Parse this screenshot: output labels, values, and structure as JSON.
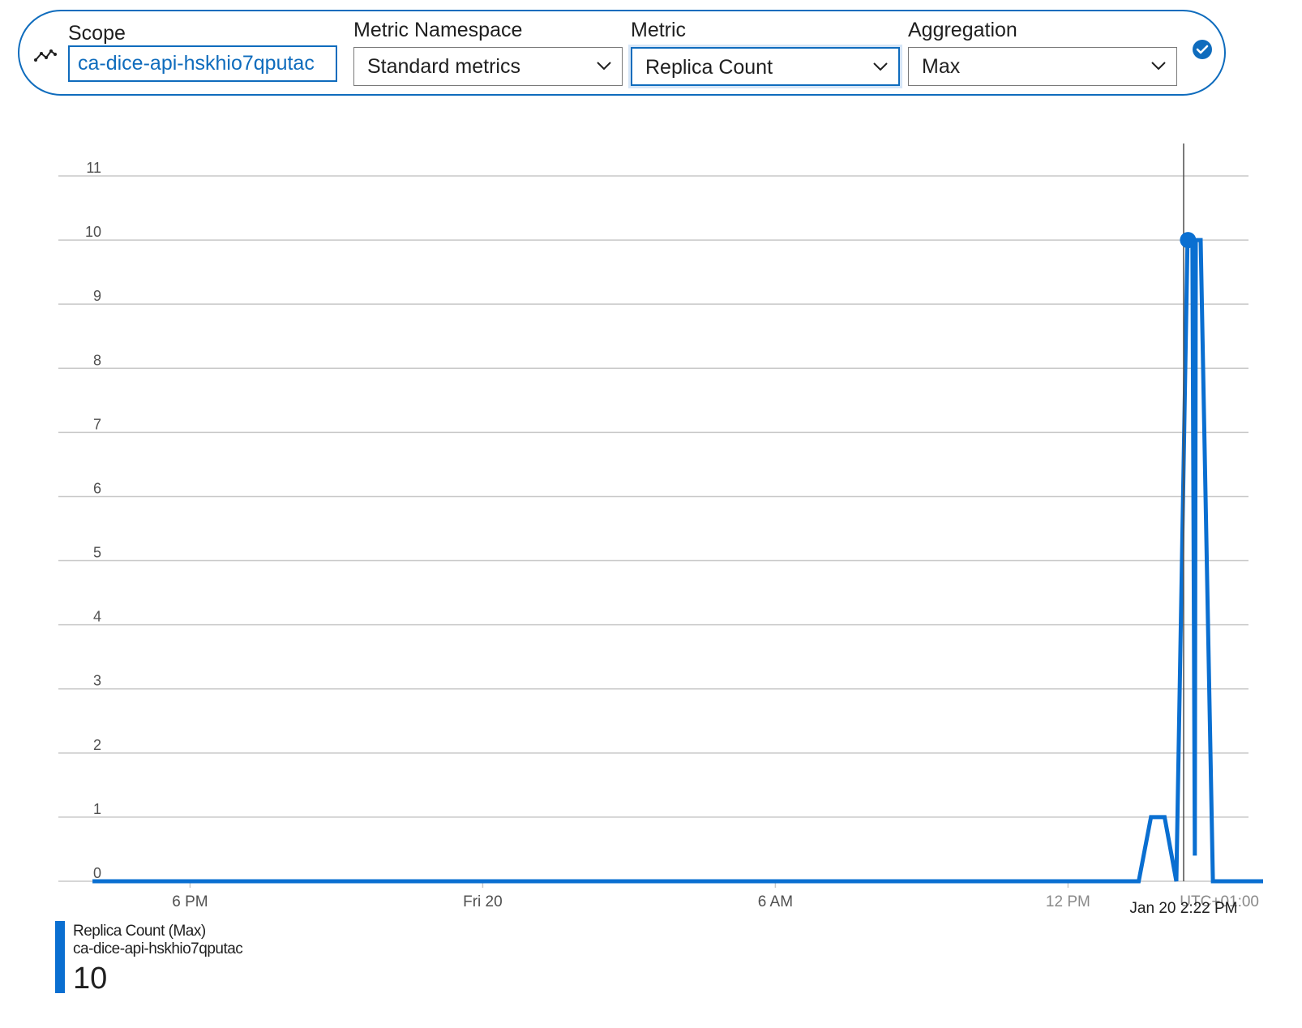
{
  "toolbar": {
    "scope_label": "Scope",
    "scope_value": "ca-dice-api-hskhio7qputac",
    "namespace_label": "Metric Namespace",
    "namespace_value": "Standard metrics",
    "metric_label": "Metric",
    "metric_value": "Replica Count",
    "aggregation_label": "Aggregation",
    "aggregation_value": "Max",
    "icons": [
      "metric-line-icon",
      "chevron-down-icon",
      "checkmark-circle-icon"
    ]
  },
  "colors": {
    "accent": "#0f6cbd",
    "series": "#0a6fd1",
    "gridline": "#c8c8c8",
    "axis_text": "#505050"
  },
  "chart_data": {
    "type": "line",
    "y_ticks": [
      "0",
      "1",
      "2",
      "3",
      "4",
      "5",
      "6",
      "7",
      "8",
      "9",
      "10",
      "11"
    ],
    "ylim": [
      0,
      11
    ],
    "x_ticks": [
      {
        "label": "6 PM",
        "hour": 18
      },
      {
        "label": "Fri 20",
        "hour": 24
      },
      {
        "label": "6 AM",
        "hour": 30
      },
      {
        "label": "12 PM",
        "hour": 36
      }
    ],
    "x_range_hours": [
      15.3,
      39.7
    ],
    "timezone_label": "UTC+01:00",
    "cursor_label": "Jan 20 2:22 PM",
    "cursor_hour": 38.37,
    "grid": true,
    "series": [
      {
        "name": "Replica Count (Max)",
        "points": [
          [
            16.0,
            0
          ],
          [
            37.45,
            0
          ],
          [
            37.7,
            1
          ],
          [
            37.98,
            1
          ],
          [
            38.22,
            0
          ],
          [
            38.45,
            10
          ],
          [
            38.55,
            10
          ],
          [
            38.6,
            0.4
          ],
          [
            38.62,
            10
          ],
          [
            38.72,
            10
          ],
          [
            38.97,
            0
          ],
          [
            40.0,
            0
          ]
        ]
      }
    ],
    "highlight_point": {
      "hour": 38.46,
      "value": 10
    }
  },
  "legend": {
    "series_name": "Replica Count (Max)",
    "resource": "ca-dice-api-hskhio7qputac",
    "value": "10"
  }
}
